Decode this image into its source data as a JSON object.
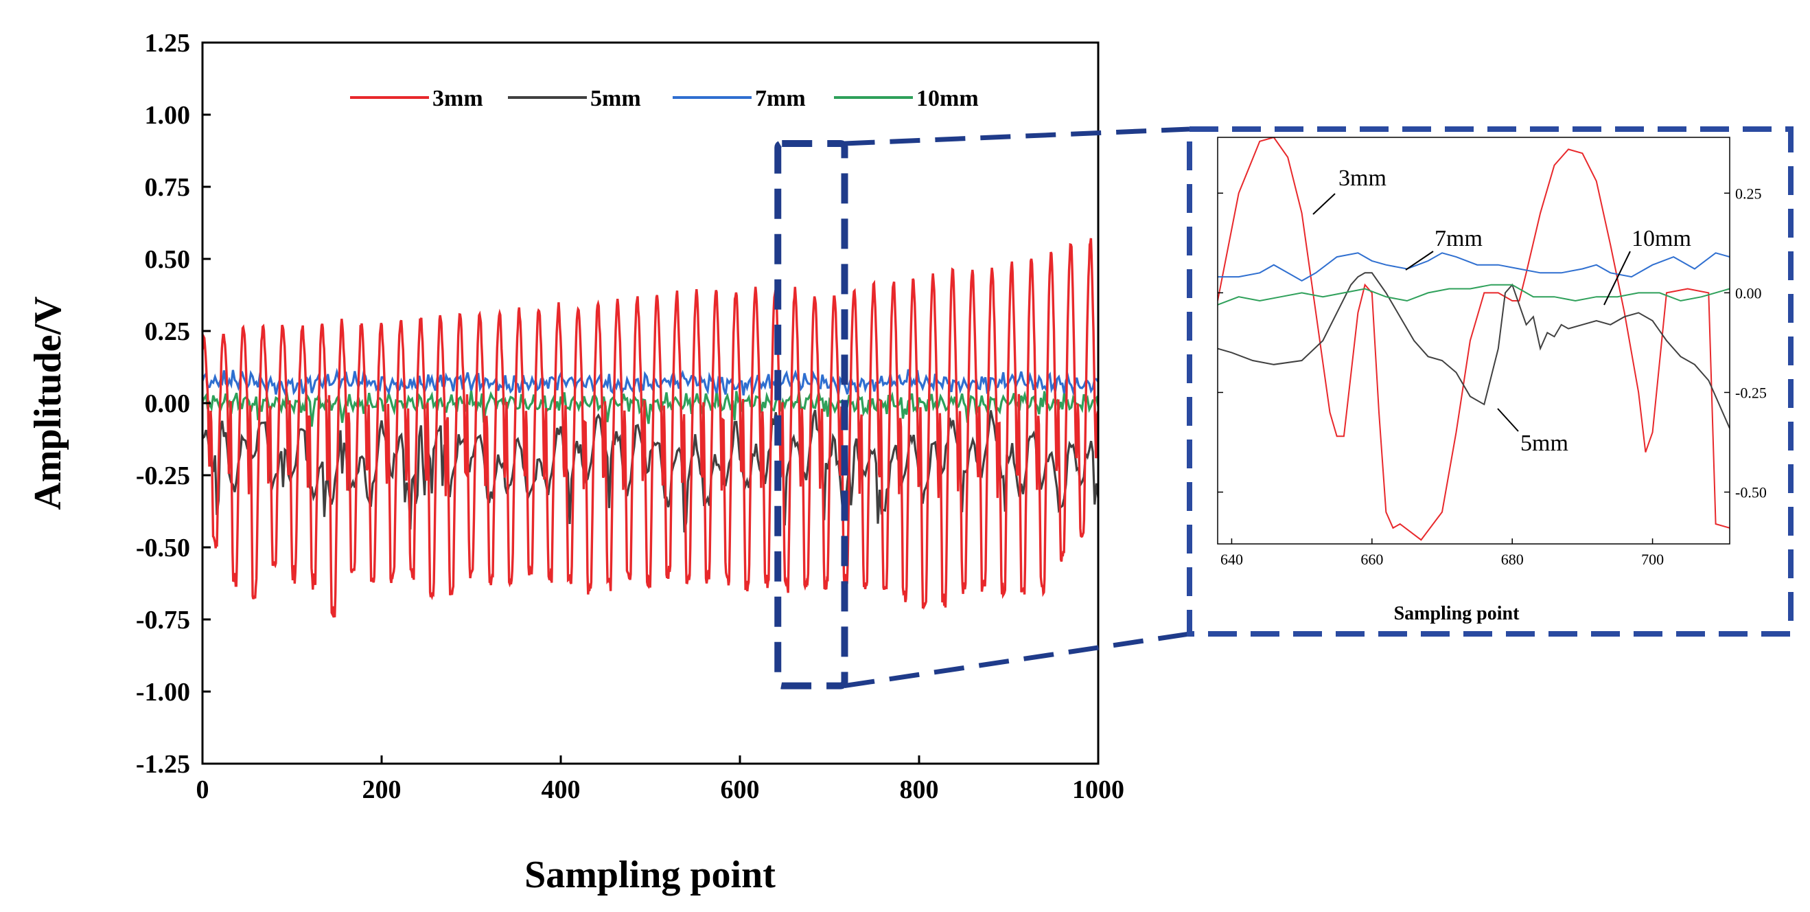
{
  "chart_data": [
    {
      "id": "main",
      "type": "line",
      "title": "",
      "xlabel": "Sampling point",
      "ylabel": "Amplitude/V",
      "xlim": [
        0,
        1000
      ],
      "ylim": [
        -1.25,
        1.25
      ],
      "xticks": [
        0,
        200,
        400,
        600,
        800,
        1000
      ],
      "xtick_labels": [
        "0",
        "200",
        "400",
        "600",
        "800",
        "1000"
      ],
      "yticks": [
        1.25,
        1.0,
        0.75,
        0.5,
        0.25,
        0.0,
        -0.25,
        -0.5,
        -0.75,
        -1.0,
        -1.25
      ],
      "ytick_labels": [
        "1.25",
        "1.00",
        "0.75",
        "0.50",
        "0.25",
        "0.00",
        "-0.25",
        "-0.50",
        "-0.75",
        "-1.00",
        "-1.25"
      ],
      "legend_position": "top",
      "grid": false,
      "series": [
        {
          "name": "3mm",
          "color": "#e8282b",
          "pattern": "oscillation period ~22 points, peaks rising from ~0.25 to ~0.57, troughs ~-0.4 to -0.75",
          "peaks": [
            [
              0,
              0.22
            ],
            [
              44,
              0.27
            ],
            [
              66,
              0.27
            ],
            [
              88,
              0.28
            ],
            [
              110,
              0.27
            ],
            [
              132,
              0.27
            ],
            [
              154,
              0.28
            ],
            [
              176,
              0.28
            ],
            [
              198,
              0.28
            ],
            [
              220,
              0.29
            ],
            [
              242,
              0.3
            ],
            [
              264,
              0.3
            ],
            [
              286,
              0.31
            ],
            [
              308,
              0.31
            ],
            [
              330,
              0.32
            ],
            [
              352,
              0.32
            ],
            [
              374,
              0.33
            ],
            [
              396,
              0.34
            ],
            [
              418,
              0.34
            ],
            [
              440,
              0.35
            ],
            [
              462,
              0.36
            ],
            [
              484,
              0.37
            ],
            [
              506,
              0.37
            ],
            [
              528,
              0.38
            ],
            [
              550,
              0.38
            ],
            [
              572,
              0.39
            ],
            [
              594,
              0.39
            ],
            [
              616,
              0.4
            ],
            [
              646,
              0.4
            ],
            [
              668,
              0.39
            ],
            [
              690,
              0.37
            ],
            [
              712,
              0.38
            ],
            [
              734,
              0.4
            ],
            [
              756,
              0.42
            ],
            [
              778,
              0.43
            ],
            [
              800,
              0.44
            ],
            [
              822,
              0.45
            ],
            [
              844,
              0.46
            ],
            [
              866,
              0.47
            ],
            [
              888,
              0.48
            ],
            [
              910,
              0.48
            ],
            [
              932,
              0.52
            ],
            [
              956,
              0.54
            ],
            [
              976,
              0.57
            ]
          ],
          "troughs": [
            [
              8,
              -0.45
            ],
            [
              30,
              -0.6
            ],
            [
              56,
              -0.68
            ],
            [
              80,
              -0.55
            ],
            [
              104,
              -0.6
            ],
            [
              128,
              -0.62
            ],
            [
              148,
              -0.75
            ],
            [
              172,
              -0.55
            ],
            [
              196,
              -0.62
            ],
            [
              218,
              -0.6
            ],
            [
              242,
              -0.58
            ],
            [
              264,
              -0.72
            ],
            [
              286,
              -0.6
            ],
            [
              308,
              -0.58
            ],
            [
              330,
              -0.62
            ],
            [
              352,
              -0.6
            ],
            [
              374,
              -0.58
            ],
            [
              396,
              -0.6
            ],
            [
              418,
              -0.63
            ],
            [
              440,
              -0.65
            ],
            [
              462,
              -0.62
            ],
            [
              484,
              -0.6
            ],
            [
              506,
              -0.63
            ],
            [
              528,
              -0.58
            ],
            [
              550,
              -0.62
            ],
            [
              572,
              -0.6
            ],
            [
              594,
              -0.62
            ],
            [
              616,
              -0.64
            ],
            [
              640,
              -0.61
            ],
            [
              660,
              -0.65
            ],
            [
              684,
              -0.62
            ],
            [
              706,
              -0.63
            ],
            [
              728,
              -0.62
            ],
            [
              750,
              -0.63
            ],
            [
              772,
              -0.65
            ],
            [
              794,
              -0.68
            ],
            [
              816,
              -0.71
            ],
            [
              838,
              -0.66
            ],
            [
              860,
              -0.62
            ],
            [
              882,
              -0.66
            ],
            [
              904,
              -0.64
            ],
            [
              926,
              -0.66
            ],
            [
              948,
              -0.62
            ],
            [
              970,
              -0.45
            ]
          ]
        },
        {
          "name": "5mm",
          "color": "#404040",
          "pattern": "irregular around -0.2, range ~0.02 to ~-0.46"
        },
        {
          "name": "7mm",
          "color": "#2f6fd0",
          "pattern": "small ripple around 0.07, range ~0.03 to ~0.12"
        },
        {
          "name": "10mm",
          "color": "#2ea05a",
          "pattern": "small ripple around 0.0, range ~-0.08 to ~0.03"
        }
      ]
    },
    {
      "id": "inset",
      "type": "line",
      "xlabel": "Sampling point",
      "xlim": [
        638,
        711
      ],
      "ylim": [
        -0.63,
        0.39
      ],
      "xticks": [
        640,
        660,
        680,
        700
      ],
      "xtick_labels": [
        "640",
        "660",
        "680",
        "700"
      ],
      "yticks": [
        0.25,
        0.0,
        -0.25,
        -0.5
      ],
      "ytick_labels": [
        "0.25",
        "0.00",
        "-0.25",
        "-0.50"
      ],
      "yaxis_side": "right",
      "series": [
        {
          "name": "3mm",
          "color": "#e8282b",
          "x": [
            638,
            641,
            644,
            646,
            648,
            650,
            652,
            654,
            655,
            656,
            658,
            659,
            660,
            661,
            662,
            663,
            664,
            667,
            670,
            672,
            674,
            676,
            678,
            680,
            681,
            682,
            684,
            686,
            688,
            690,
            692,
            694,
            696,
            698,
            699,
            700,
            702,
            705,
            708,
            709,
            711
          ],
          "y": [
            -0.02,
            0.25,
            0.38,
            0.39,
            0.34,
            0.2,
            -0.05,
            -0.3,
            -0.36,
            -0.36,
            -0.05,
            0.02,
            0.0,
            -0.3,
            -0.55,
            -0.59,
            -0.58,
            -0.62,
            -0.55,
            -0.35,
            -0.12,
            0.0,
            0.0,
            -0.02,
            -0.02,
            0.05,
            0.2,
            0.32,
            0.36,
            0.35,
            0.28,
            0.12,
            -0.05,
            -0.25,
            -0.4,
            -0.35,
            0.0,
            0.01,
            0.0,
            -0.58,
            -0.59
          ]
        },
        {
          "name": "5mm",
          "color": "#404040",
          "x": [
            638,
            640,
            643,
            646,
            650,
            653,
            655,
            657,
            658,
            659,
            660,
            662,
            664,
            666,
            668,
            670,
            672,
            674,
            676,
            678,
            679,
            680,
            681,
            682,
            683,
            684,
            685,
            686,
            687,
            688,
            690,
            692,
            694,
            696,
            698,
            700,
            702,
            704,
            706,
            708,
            711
          ],
          "y": [
            -0.14,
            -0.15,
            -0.17,
            -0.18,
            -0.17,
            -0.12,
            -0.05,
            0.02,
            0.04,
            0.05,
            0.05,
            0.0,
            -0.06,
            -0.12,
            -0.16,
            -0.17,
            -0.2,
            -0.26,
            -0.28,
            -0.14,
            0.0,
            0.02,
            -0.03,
            -0.08,
            -0.06,
            -0.14,
            -0.1,
            -0.11,
            -0.08,
            -0.09,
            -0.08,
            -0.07,
            -0.08,
            -0.06,
            -0.05,
            -0.07,
            -0.12,
            -0.16,
            -0.18,
            -0.22,
            -0.34
          ]
        },
        {
          "name": "7mm",
          "color": "#2f6fd0",
          "x": [
            638,
            641,
            644,
            646,
            648,
            650,
            652,
            655,
            658,
            660,
            662,
            665,
            668,
            670,
            672,
            675,
            678,
            681,
            684,
            687,
            690,
            692,
            694,
            697,
            700,
            703,
            706,
            709,
            711
          ],
          "y": [
            0.04,
            0.04,
            0.05,
            0.07,
            0.05,
            0.03,
            0.05,
            0.09,
            0.1,
            0.08,
            0.07,
            0.06,
            0.08,
            0.1,
            0.09,
            0.07,
            0.07,
            0.06,
            0.05,
            0.05,
            0.06,
            0.07,
            0.05,
            0.04,
            0.07,
            0.09,
            0.06,
            0.1,
            0.09
          ]
        },
        {
          "name": "10mm",
          "color": "#2ea05a",
          "x": [
            638,
            641,
            644,
            647,
            650,
            653,
            656,
            659,
            662,
            665,
            668,
            671,
            674,
            677,
            680,
            683,
            686,
            689,
            692,
            695,
            698,
            701,
            704,
            707,
            711
          ],
          "y": [
            -0.03,
            -0.01,
            -0.02,
            -0.01,
            0.0,
            -0.01,
            0.0,
            0.01,
            -0.01,
            -0.02,
            0.0,
            0.01,
            0.01,
            0.02,
            0.02,
            -0.01,
            -0.01,
            -0.02,
            -0.01,
            -0.01,
            0.0,
            0.0,
            -0.02,
            -0.01,
            0.01
          ]
        }
      ],
      "annotations": [
        {
          "text": "3mm",
          "series": "3mm"
        },
        {
          "text": "7mm",
          "series": "7mm"
        },
        {
          "text": "10mm",
          "series": "10mm"
        },
        {
          "text": "5mm",
          "series": "5mm"
        }
      ]
    }
  ],
  "zoom_callout": {
    "x_range": [
      650,
      700
    ],
    "y_range": [
      -0.98,
      0.9
    ],
    "color": "#1f3b8a",
    "box_color": "#2a4aa0"
  }
}
